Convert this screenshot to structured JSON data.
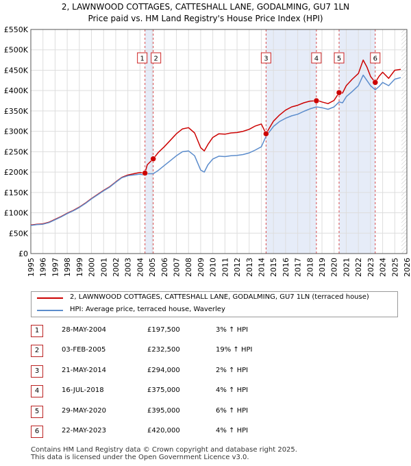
{
  "title": {
    "line1": "2, LAWNWOOD COTTAGES, CATTESHALL LANE, GODALMING, GU7 1LN",
    "line2": "Price paid vs. HM Land Registry's House Price Index (HPI)"
  },
  "colors": {
    "property": "#cc0000",
    "hpi": "#5b8ccc",
    "shade": "#e6ecf8",
    "marker_box": "#cc2222",
    "hatch": "#999999"
  },
  "chart_data": {
    "type": "line",
    "title": "2, LAWNWOOD COTTAGES, CATTESHALL LANE, GODALMING, GU7 1LN - Price paid vs. HM Land Registry's House Price Index (HPI)",
    "xlim": [
      1995,
      2026
    ],
    "ylim": [
      0,
      550000
    ],
    "x_ticks": [
      1995,
      1996,
      1997,
      1998,
      1999,
      2000,
      2001,
      2002,
      2003,
      2004,
      2005,
      2006,
      2007,
      2008,
      2009,
      2010,
      2011,
      2012,
      2013,
      2014,
      2015,
      2016,
      2017,
      2018,
      2019,
      2020,
      2021,
      2022,
      2023,
      2024,
      2025,
      2026
    ],
    "y_ticks": [
      0,
      50000,
      100000,
      150000,
      200000,
      250000,
      300000,
      350000,
      400000,
      450000,
      500000,
      550000
    ],
    "y_tick_labels": [
      "£0",
      "£50K",
      "£100K",
      "£150K",
      "£200K",
      "£250K",
      "£300K",
      "£350K",
      "£400K",
      "£450K",
      "£500K",
      "£550K"
    ],
    "shaded_periods": [
      [
        2004.41,
        2005.09
      ],
      [
        2014.39,
        2018.54
      ],
      [
        2020.41,
        2023.39
      ]
    ],
    "series": [
      {
        "name": "2, LAWNWOOD COTTAGES, CATTESHALL LANE, GODALMING, GU7 1LN (terraced house)",
        "x": [
          1995,
          1995.5,
          1996,
          1996.5,
          1997,
          1997.5,
          1998,
          1998.5,
          1999,
          1999.5,
          2000,
          2000.5,
          2001,
          2001.5,
          2002,
          2002.5,
          2003,
          2003.5,
          2004,
          2004.41,
          2004.6,
          2005.09,
          2005.5,
          2006,
          2006.5,
          2007,
          2007.5,
          2008,
          2008.5,
          2009,
          2009.3,
          2009.6,
          2010,
          2010.5,
          2011,
          2011.5,
          2012,
          2012.5,
          2013,
          2013.5,
          2014,
          2014.39,
          2014.7,
          2015,
          2015.5,
          2016,
          2016.5,
          2017,
          2017.5,
          2018,
          2018.54,
          2018.8,
          2019,
          2019.5,
          2020,
          2020.41,
          2020.7,
          2021,
          2021.5,
          2022,
          2022.4,
          2022.7,
          2023,
          2023.39,
          2023.7,
          2024,
          2024.5,
          2025,
          2025.5
        ],
        "values": [
          70000,
          72000,
          73000,
          77000,
          84000,
          91000,
          99000,
          106000,
          114000,
          124000,
          135000,
          145000,
          155000,
          164000,
          176000,
          187000,
          193000,
          196000,
          199000,
          197500,
          218000,
          232500,
          248000,
          262000,
          278000,
          294000,
          306000,
          309000,
          296000,
          260000,
          252000,
          268000,
          285000,
          294000,
          293000,
          296000,
          297000,
          300000,
          305000,
          313000,
          318000,
          294000,
          310000,
          325000,
          340000,
          352000,
          360000,
          364000,
          370000,
          374000,
          375000,
          374000,
          372000,
          368000,
          376000,
          395000,
          394000,
          412000,
          428000,
          442000,
          475000,
          458000,
          435000,
          420000,
          435000,
          445000,
          430000,
          450000,
          452000
        ]
      },
      {
        "name": "HPI: Average price, terraced house, Waverley",
        "x": [
          1995,
          1995.5,
          1996,
          1996.5,
          1997,
          1997.5,
          1998,
          1998.5,
          1999,
          1999.5,
          2000,
          2000.5,
          2001,
          2001.5,
          2002,
          2002.5,
          2003,
          2003.5,
          2004,
          2004.41,
          2004.6,
          2005.09,
          2005.5,
          2006,
          2006.5,
          2007,
          2007.5,
          2008,
          2008.5,
          2009,
          2009.3,
          2009.6,
          2010,
          2010.5,
          2011,
          2011.5,
          2012,
          2012.5,
          2013,
          2013.5,
          2014,
          2014.39,
          2014.7,
          2015,
          2015.5,
          2016,
          2016.5,
          2017,
          2017.5,
          2018,
          2018.54,
          2018.8,
          2019,
          2019.5,
          2020,
          2020.41,
          2020.7,
          2021,
          2021.5,
          2022,
          2022.4,
          2022.7,
          2023,
          2023.39,
          2023.7,
          2024,
          2024.5,
          2025,
          2025.5
        ],
        "values": [
          69000,
          71000,
          72000,
          76000,
          83000,
          90000,
          98000,
          105000,
          113000,
          123000,
          134000,
          144000,
          154000,
          163000,
          175000,
          186000,
          191000,
          193000,
          195000,
          192000,
          196000,
          196000,
          204000,
          216000,
          228000,
          240000,
          250000,
          252000,
          240000,
          205000,
          200000,
          218000,
          232000,
          239000,
          238000,
          240000,
          241000,
          243000,
          247000,
          254000,
          262000,
          288000,
          300000,
          312000,
          324000,
          332000,
          338000,
          342000,
          349000,
          355000,
          360000,
          359000,
          358000,
          354000,
          360000,
          372000,
          370000,
          385000,
          398000,
          412000,
          438000,
          425000,
          412000,
          402000,
          410000,
          420000,
          412000,
          428000,
          432000
        ]
      }
    ],
    "sale_markers": [
      {
        "label": "1",
        "x": 2004.41,
        "y": 197500
      },
      {
        "label": "2",
        "x": 2005.09,
        "y": 232500
      },
      {
        "label": "3",
        "x": 2014.39,
        "y": 294000
      },
      {
        "label": "4",
        "x": 2018.54,
        "y": 375000
      },
      {
        "label": "5",
        "x": 2020.41,
        "y": 395000
      },
      {
        "label": "6",
        "x": 2023.39,
        "y": 420000
      }
    ]
  },
  "legend": {
    "property_label": "2, LAWNWOOD COTTAGES, CATTESHALL LANE, GODALMING, GU7 1LN (terraced house)",
    "hpi_label": "HPI: Average price, terraced house, Waverley"
  },
  "sales": [
    {
      "num": "1",
      "date": "28-MAY-2004",
      "price": "£197,500",
      "hpi": "3% ↑ HPI"
    },
    {
      "num": "2",
      "date": "03-FEB-2005",
      "price": "£232,500",
      "hpi": "19% ↑ HPI"
    },
    {
      "num": "3",
      "date": "21-MAY-2014",
      "price": "£294,000",
      "hpi": "2% ↑ HPI"
    },
    {
      "num": "4",
      "date": "16-JUL-2018",
      "price": "£375,000",
      "hpi": "4% ↑ HPI"
    },
    {
      "num": "5",
      "date": "29-MAY-2020",
      "price": "£395,000",
      "hpi": "6% ↑ HPI"
    },
    {
      "num": "6",
      "date": "22-MAY-2023",
      "price": "£420,000",
      "hpi": "4% ↑ HPI"
    }
  ],
  "footer": {
    "line1": "Contains HM Land Registry data © Crown copyright and database right 2025.",
    "line2": "This data is licensed under the Open Government Licence v3.0."
  }
}
